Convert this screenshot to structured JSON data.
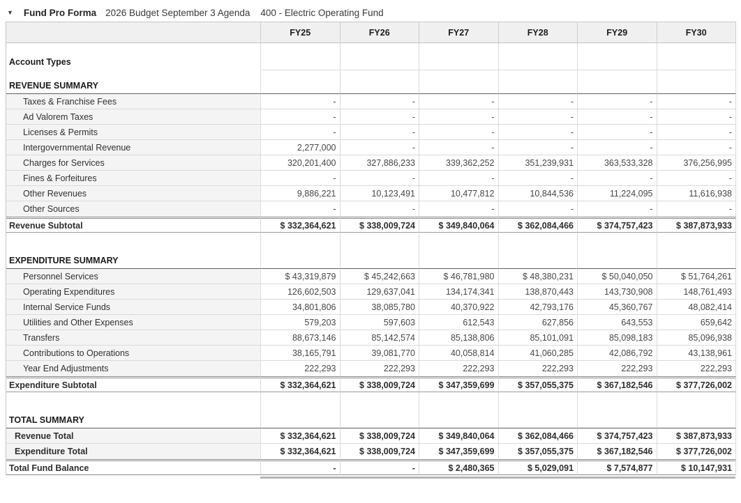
{
  "header": {
    "collapse_icon": "▼",
    "title": "Fund Pro Forma",
    "budget_name": "2026 Budget September 3 Agenda",
    "fund_name": "400 - Electric Operating Fund"
  },
  "table": {
    "columns": [
      "FY25",
      "FY26",
      "FY27",
      "FY28",
      "FY29",
      "FY30"
    ],
    "rows": [
      {
        "type": "group",
        "label": "Account Types",
        "values": [
          "",
          "",
          "",
          "",
          "",
          ""
        ]
      },
      {
        "type": "section",
        "label": "REVENUE SUMMARY",
        "values": [
          "",
          "",
          "",
          "",
          "",
          ""
        ]
      },
      {
        "type": "detail",
        "label": "Taxes & Franchise Fees",
        "values": [
          "-",
          "-",
          "-",
          "-",
          "-",
          "-"
        ]
      },
      {
        "type": "detail",
        "label": "Ad Valorem Taxes",
        "values": [
          "-",
          "-",
          "-",
          "-",
          "-",
          "-"
        ]
      },
      {
        "type": "detail",
        "label": "Licenses & Permits",
        "values": [
          "-",
          "-",
          "-",
          "-",
          "-",
          "-"
        ]
      },
      {
        "type": "detail",
        "label": "Intergovernmental Revenue",
        "values": [
          "2,277,000",
          "-",
          "-",
          "-",
          "-",
          "-"
        ]
      },
      {
        "type": "detail",
        "label": "Charges for Services",
        "values": [
          "320,201,400",
          "327,886,233",
          "339,362,252",
          "351,239,931",
          "363,533,328",
          "376,256,995"
        ]
      },
      {
        "type": "detail",
        "label": "Fines & Forfeitures",
        "values": [
          "-",
          "-",
          "-",
          "-",
          "-",
          "-"
        ]
      },
      {
        "type": "detail",
        "label": "Other Revenues",
        "values": [
          "9,886,221",
          "10,123,491",
          "10,477,812",
          "10,844,536",
          "11,224,095",
          "11,616,938"
        ]
      },
      {
        "type": "detail",
        "label": "Other Sources",
        "values": [
          "-",
          "-",
          "-",
          "-",
          "-",
          "-"
        ]
      },
      {
        "type": "subtotal",
        "label": "Revenue Subtotal",
        "values": [
          "$ 332,364,621",
          "$ 338,009,724",
          "$ 349,840,064",
          "$ 362,084,466",
          "$ 374,757,423",
          "$ 387,873,933"
        ]
      },
      {
        "type": "section-gap",
        "label": "EXPENDITURE SUMMARY",
        "values": [
          "",
          "",
          "",
          "",
          "",
          ""
        ]
      },
      {
        "type": "detail",
        "label": "Personnel Services",
        "values": [
          "$ 43,319,879",
          "$ 45,242,663",
          "$ 46,781,980",
          "$ 48,380,231",
          "$ 50,040,050",
          "$ 51,764,261"
        ]
      },
      {
        "type": "detail",
        "label": "Operating Expenditures",
        "values": [
          "126,602,503",
          "129,637,041",
          "134,174,341",
          "138,870,443",
          "143,730,908",
          "148,761,493"
        ]
      },
      {
        "type": "detail",
        "label": "Internal Service Funds",
        "values": [
          "34,801,806",
          "38,085,780",
          "40,370,922",
          "42,793,176",
          "45,360,767",
          "48,082,414"
        ]
      },
      {
        "type": "detail",
        "label": "Utilities and Other Expenses",
        "values": [
          "579,203",
          "597,603",
          "612,543",
          "627,856",
          "643,553",
          "659,642"
        ]
      },
      {
        "type": "detail",
        "label": "Transfers",
        "values": [
          "88,673,146",
          "85,142,574",
          "85,138,806",
          "85,101,091",
          "85,098,183",
          "85,096,938"
        ]
      },
      {
        "type": "detail",
        "label": "Contributions to Operations",
        "values": [
          "38,165,791",
          "39,081,770",
          "40,058,814",
          "41,060,285",
          "42,086,792",
          "43,138,961"
        ]
      },
      {
        "type": "detail",
        "label": "Year End Adjustments",
        "values": [
          "222,293",
          "222,293",
          "222,293",
          "222,293",
          "222,293",
          "222,293"
        ]
      },
      {
        "type": "subtotal",
        "label": "Expenditure Subtotal",
        "values": [
          "$ 332,364,621",
          "$ 338,009,724",
          "$ 347,359,699",
          "$ 357,055,375",
          "$ 367,182,546",
          "$ 377,726,002"
        ]
      },
      {
        "type": "section-gap",
        "label": "TOTAL SUMMARY",
        "values": [
          "",
          "",
          "",
          "",
          "",
          ""
        ]
      },
      {
        "type": "total",
        "label": "Revenue Total",
        "values": [
          "$ 332,364,621",
          "$ 338,009,724",
          "$ 349,840,064",
          "$ 362,084,466",
          "$ 374,757,423",
          "$ 387,873,933"
        ]
      },
      {
        "type": "total",
        "label": "Expenditure Total",
        "values": [
          "$ 332,364,621",
          "$ 338,009,724",
          "$ 347,359,699",
          "$ 357,055,375",
          "$ 367,182,546",
          "$ 377,726,002"
        ]
      },
      {
        "type": "grand",
        "label": "Total Fund Balance",
        "values": [
          "-",
          "-",
          "$ 2,480,365",
          "$ 5,029,091",
          "$ 7,574,877",
          "$ 10,147,931"
        ]
      }
    ]
  }
}
